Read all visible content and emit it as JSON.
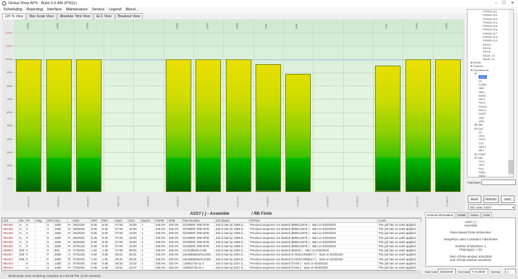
{
  "window": {
    "title": "Global Shop APS - Build 3.9.446 (PSQL)",
    "controls": [
      "–",
      "☐",
      "✕"
    ]
  },
  "menu": [
    "Scheduling",
    "Reporting",
    "Interface",
    "Maintenance",
    "Service",
    "Legend",
    "About..."
  ],
  "view_tabs": [
    {
      "label": "120 % View",
      "active": true
    },
    {
      "label": "Max Scale View"
    },
    {
      "label": "Absolute Time View"
    },
    {
      "label": "ELC View"
    },
    {
      "label": "Breakout View"
    }
  ],
  "chart_data": {
    "type": "bar",
    "categories": [
      "06/24/20",
      "06/25/20",
      "06/26/20",
      "06/27/20",
      "06/28/20",
      "06/29/20",
      "06/30/20",
      "07/01/20",
      "07/02/20",
      "07/03/20",
      "07/04/20",
      "07/05/20",
      "07/06/20",
      "07/07/20",
      "07/08/20"
    ],
    "values": [
      100,
      100,
      100,
      null,
      null,
      100,
      100,
      100,
      96,
      89,
      null,
      null,
      95,
      100,
      100
    ],
    "data_labels": [
      "100%",
      "100%",
      "100%",
      "",
      "",
      "100%",
      "100%",
      "100%",
      "96%",
      "89%",
      "",
      "",
      "95%",
      "100%",
      "100%"
    ],
    "ylim": [
      0,
      130
    ],
    "yticks": [
      "10%",
      "20%",
      "30%",
      "40%",
      "50%",
      "60%",
      "70%",
      "80%",
      "90%",
      "100%",
      "110%",
      "120%"
    ],
    "ytick_values": [
      10,
      20,
      30,
      40,
      50,
      60,
      70,
      80,
      90,
      100,
      110,
      120
    ],
    "reference_line": 100,
    "grid": true,
    "colors": {
      "bar_top": "#ece000",
      "bar_bottom": "#005c00",
      "background": "#e2f4df",
      "ref_line": "#a8b4e0"
    }
  },
  "subtitle": {
    "left": "ASSY (     ) - Assemble",
    "right": "/ RB Finite"
  },
  "table": {
    "columns": [
      "Job",
      "Sfx",
      "Pri",
      "Flag",
      "SPC",
      "Seq",
      "",
      "Date",
      "OBT",
      "RBT",
      "Start",
      "End",
      "Machs",
      "PUPM",
      "SPM",
      "Part Number",
      "Job Status",
      "RTPSS",
      "LASS"
    ],
    "rows": [
      [
        "994450",
        "X..",
        "0",
        "",
        "S",
        "1500",
        "R",
        "06/24/20",
        "8.00",
        "8.00",
        "07:00",
        "15:00",
        "1",
        "100.0%",
        "100.0%",
        "DC8000F 2ND BTB",
        "Job is late by 2389 d...",
        "Previous sequence not started (B95K12076          ) - start on 6/20/2020",
        "The job has no work applied so far"
      ],
      [
        "994450",
        "X..",
        "0",
        "",
        "S",
        "1500",
        "R",
        "06/25/20",
        "8.00",
        "8.00",
        "07:00",
        "15:00",
        "1",
        "100.0%",
        "100.0%",
        "DC8000F 2ND BTB",
        "Job is late by 2389 d...",
        "Previous sequence not started (B95K12076          ) - start on 6/20/2020",
        "The job has no work applied so far"
      ],
      [
        "994450",
        "X..",
        "0",
        "",
        "S",
        "1500",
        "R",
        "06/26/20",
        "8.00",
        "8.00",
        "07:00",
        "15:00",
        "1",
        "100.0%",
        "100.0%",
        "DC8000F 2ND BTB",
        "Job is late by 2389 d...",
        "Previous sequence not started (B95K12076          ) - start on 6/20/2020",
        "The job has no work applied so far"
      ],
      [
        "994450",
        "X..",
        "0",
        "",
        "S",
        "1500",
        "R",
        "06/29/20",
        "8.00",
        "8.00",
        "07:00",
        "15:00",
        "1",
        "100.0%",
        "100.0%",
        "DC8000F 2ND BTB",
        "Job is late by 2389 d...",
        "Previous sequence not started (B95K12076          ) - start on 6/20/2020",
        "The job has no work applied so far"
      ],
      [
        "994450",
        "X..",
        "0",
        "",
        "S",
        "1500",
        "R",
        "06/30/20",
        "8.00",
        "8.00",
        "07:00",
        "15:00",
        "1",
        "100.0%",
        "100.0%",
        "DC8000F 2ND BTB",
        "Job is late by 2389 d...",
        "Previous sequence not started (B95K12076          ) - start on 6/20/2020",
        "The job has no work applied so far"
      ],
      [
        "994450",
        "X..",
        "0",
        "",
        "S",
        "1500",
        "R",
        "07/01/20",
        "8.00",
        "8.00",
        "07:00",
        "15:00",
        "1",
        "100.0%",
        "100.0%",
        "DC8000F 2ND BTB",
        "Job is late by 2389 d...",
        "Previous sequence not started (B95K12076          ) - start on 6/20/2020",
        "The job has no work applied so far"
      ],
      [
        "289001",
        "000",
        "0",
        "",
        "S",
        "800",
        "R",
        "07/02/20",
        "1.00",
        "1.00",
        "07:00",
        "08:00",
        "1",
        "100.0%",
        "100.0%",
        "VCG2852DL3-SR",
        "Job is late by 2290 d...",
        "Previous sequence not started (B5028          ) - start on 6/20/2020",
        "The job has no work applied so far"
      ],
      [
        "994467",
        "000",
        "0",
        "",
        "P",
        "2000",
        "S",
        "07/02/20",
        "0.50",
        "0.50",
        "08:01",
        "08:31",
        "1",
        "100.0%",
        "100.0%",
        "LBAB8584WAU1OM...",
        "Job is late by 2284 d...",
        "Previous sequence not started (C-DISCONNECT          ) - start on 6/23/2020",
        "The job has no work applied so far"
      ],
      [
        "994467",
        "000",
        "0",
        "",
        "P",
        "2000",
        "R",
        "07/02/20",
        "1.00",
        "1.00",
        "08:31",
        "09:31",
        "1",
        "100.0%",
        "100.0%",
        "LBAB8584WAU1OM...",
        "Job is late by 2284 d...",
        "Previous sequence not started (C-DISCONNECT          ) - start on 6/23/2020",
        "The job has no work applied so far"
      ],
      [
        "994454",
        "",
        "0",
        "",
        "S",
        "1400",
        "S",
        "07/02/20",
        "0.50",
        "0.50",
        "09:32",
        "10:02",
        "1",
        "100.0%",
        "100.0%",
        "140W2716-11      A",
        "Job is late by 2227 d...",
        "Previous sequence not started (TASK          ) - start on 6/25/2020",
        "The job has no work applied so far"
      ],
      [
        "994454",
        "",
        "0",
        "",
        "S",
        "1400",
        "R",
        "07/02/20",
        "0.08",
        "0.08",
        "10:02",
        "10:07",
        "1",
        "100.0%",
        "100.0%",
        "140W2716-11      A",
        "Job is late by 2227 d...",
        "Previous sequence not started (TASK          ) - start on 6/25/2020",
        "The job has no work applied so far"
      ],
      [
        "289151",
        "002",
        "0",
        "",
        "C",
        "300",
        "R",
        "07/02/20",
        "0.10",
        "0.10",
        "10:08",
        "10:14",
        "1",
        "100.0%",
        "100.0%",
        "CB025515",
        "Job on time",
        "Previous sequence not started (RS005142          ) - start on 6/24/2020",
        "The job has no work applied so far"
      ]
    ]
  },
  "tree": [
    {
      "label": "F99002-011",
      "depth": 3
    },
    {
      "label": "F99002-012",
      "depth": 3
    },
    {
      "label": "F99002-013",
      "depth": 3
    },
    {
      "label": "F99002-014",
      "depth": 3
    },
    {
      "label": "F99002-015",
      "depth": 3
    },
    {
      "label": "F99002-016",
      "depth": 3
    },
    {
      "label": "F99002-017",
      "depth": 3
    },
    {
      "label": "F99002-018",
      "depth": 3
    },
    {
      "label": "F99002-019",
      "depth": 3
    },
    {
      "label": "IND15 -",
      "depth": 3
    },
    {
      "label": "IND16 -",
      "depth": 3
    },
    {
      "label": "IND18 -",
      "depth": 3
    },
    {
      "label": "IND20 -01",
      "depth": 3
    },
    {
      "label": "INDW -01",
      "depth": 3
    },
    {
      "label": "⊞ BOMs",
      "depth": 0
    },
    {
      "label": "⊞ Projects",
      "depth": 0
    },
    {
      "label": "⊟ Departments",
      "depth": 0
    },
    {
      "label": "⊟",
      "depth": 1
    },
    {
      "label": "ASSY",
      "depth": 2,
      "selected": true
    },
    {
      "label": "DT",
      "depth": 2
    },
    {
      "label": "FORM",
      "depth": 2
    },
    {
      "label": "HW1",
      "depth": 2
    },
    {
      "label": "HW2",
      "depth": 2
    },
    {
      "label": "WINE",
      "depth": 2
    },
    {
      "label": "PAC1",
      "depth": 2
    },
    {
      "label": "PAC2",
      "depth": 2
    },
    {
      "label": "PROM",
      "depth": 2
    },
    {
      "label": "RECV",
      "depth": 2
    },
    {
      "label": "SHOP",
      "depth": 2
    },
    {
      "label": "VM1",
      "depth": 2
    },
    {
      "label": "VM2",
      "depth": 2
    },
    {
      "label": "⊞ KBK",
      "depth": 1
    },
    {
      "label": "⊟ CNC",
      "depth": 1
    },
    {
      "label": "10",
      "depth": 2
    },
    {
      "label": "1001",
      "depth": 2
    },
    {
      "label": "CNCL",
      "depth": 2
    },
    {
      "label": "CUT",
      "depth": 2
    },
    {
      "label": "DRILL",
      "depth": 2
    },
    {
      "label": "MILL",
      "depth": 2
    },
    {
      "label": "⊞ COMP",
      "depth": 1
    },
    {
      "label": "⊟ FAB",
      "depth": 1
    },
    {
      "label": "1014",
      "depth": 2
    },
    {
      "label": "1507",
      "depth": 2
    },
    {
      "label": "PNT",
      "depth": 2
    },
    {
      "label": "SM01",
      "depth": 2
    },
    {
      "label": "SM02",
      "depth": 2
    },
    {
      "label": "SM03",
      "depth": 2
    }
  ],
  "side": {
    "find_label": "Find Item",
    "find_value": "",
    "back": "Back",
    "refresh": "Refresh",
    "next": "Next",
    "wc_view": "WC view: ASSY",
    "info_tabs": [
      {
        "label": "General Information",
        "active": true
      },
      {
        "label": "Detail"
      },
      {
        "label": "Action"
      },
      {
        "label": "GAB"
      }
    ],
    "info_lines": [
      "ASSY (     )",
      "Assemble",
      "",
      "Rules-Based Finite Workcenter",
      "",
      "Setup/Run Labor Constraint: False/False",
      "",
      "Number of Machines: 1",
      "Float (type): 1 (0)",
      "",
      "Start of finite window: 6/24/2020",
      "End of finite window: 6/23/2021"
    ],
    "start_date_label": "Start Date",
    "start_date": "6/24/2020",
    "end_date_label": "End Date",
    "end_date": "7/ 8 /2020",
    "interval_label": "Interval",
    "interval": "1"
  },
  "status": "Workcenter view rendering complete at 1:52:58 PM. (0.03 minutes)"
}
